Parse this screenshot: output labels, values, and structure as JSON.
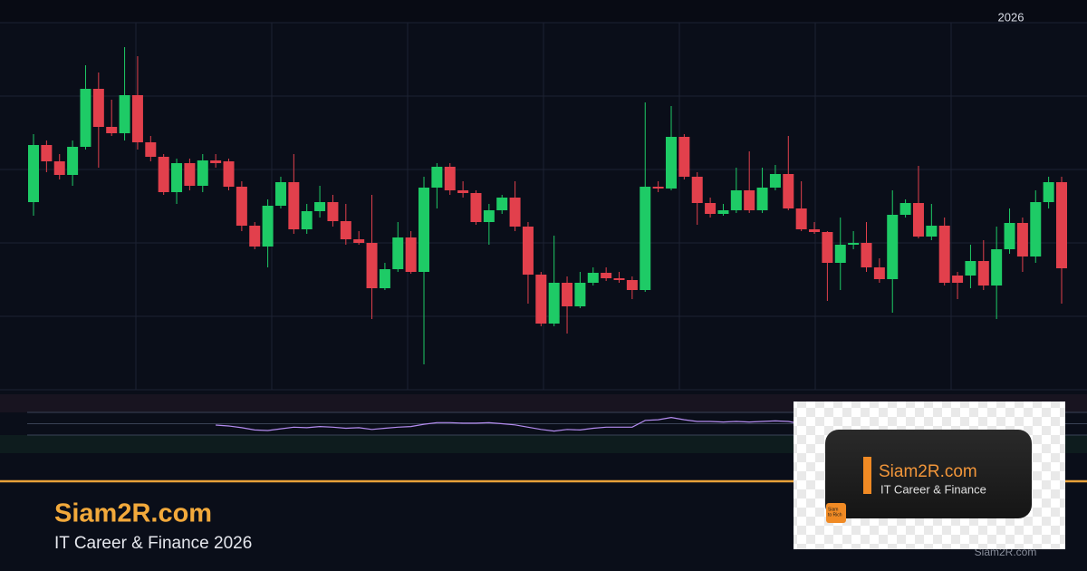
{
  "chart_data": {
    "type": "candlestick",
    "up_color": "#1ecb66",
    "down_color": "#e2404c",
    "ylim": [
      0,
      405
    ],
    "yticks": [
      0,
      81,
      162,
      243,
      324,
      405
    ],
    "grid": true,
    "open": [
      207,
      270,
      252,
      237,
      268,
      332,
      290,
      283,
      325,
      273,
      257,
      218,
      250,
      225,
      253,
      252,
      224,
      181,
      158,
      203,
      229,
      177,
      197,
      207,
      186,
      166,
      162,
      112,
      133,
      168,
      130,
      223,
      246,
      220,
      217,
      185,
      198,
      212,
      180,
      127,
      73,
      118,
      92,
      118,
      129,
      123,
      121,
      110,
      224,
      222,
      279,
      235,
      206,
      194,
      198,
      220,
      198,
      223,
      238,
      200,
      177,
      174,
      140,
      160,
      162,
      135,
      122,
      193,
      206,
      169,
      181,
      126,
      126,
      142,
      115,
      155,
      184,
      147,
      207,
      229
    ],
    "high": [
      282,
      275,
      260,
      275,
      358,
      350,
      320,
      378,
      368,
      280,
      260,
      255,
      255,
      260,
      260,
      255,
      230,
      185,
      210,
      235,
      260,
      205,
      225,
      215,
      205,
      175,
      215,
      140,
      185,
      175,
      235,
      250,
      250,
      230,
      220,
      205,
      215,
      230,
      185,
      130,
      170,
      125,
      130,
      135,
      135,
      130,
      125,
      317,
      230,
      313,
      282,
      240,
      212,
      205,
      245,
      263,
      245,
      248,
      280,
      230,
      185,
      175,
      190,
      175,
      185,
      145,
      220,
      210,
      247,
      205,
      190,
      130,
      160,
      165,
      180,
      200,
      190,
      220,
      235,
      235
    ],
    "low": [
      192,
      240,
      232,
      225,
      265,
      245,
      280,
      275,
      265,
      252,
      215,
      205,
      220,
      218,
      245,
      220,
      175,
      155,
      135,
      200,
      172,
      172,
      190,
      180,
      160,
      160,
      78,
      110,
      130,
      128,
      28,
      200,
      215,
      212,
      182,
      160,
      194,
      175,
      95,
      70,
      70,
      62,
      90,
      115,
      120,
      118,
      100,
      108,
      218,
      220,
      232,
      182,
      190,
      192,
      195,
      195,
      195,
      220,
      198,
      175,
      172,
      98,
      110,
      155,
      130,
      118,
      85,
      190,
      167,
      165,
      115,
      100,
      112,
      110,
      78,
      150,
      130,
      140,
      200,
      95
    ],
    "close": [
      270,
      252,
      237,
      268,
      332,
      290,
      283,
      325,
      273,
      257,
      218,
      250,
      225,
      253,
      250,
      224,
      181,
      158,
      203,
      229,
      177,
      197,
      207,
      186,
      166,
      162,
      112,
      133,
      168,
      130,
      223,
      246,
      220,
      217,
      185,
      198,
      212,
      180,
      127,
      73,
      118,
      92,
      118,
      129,
      123,
      121,
      110,
      224,
      222,
      279,
      235,
      206,
      194,
      198,
      220,
      198,
      223,
      238,
      200,
      177,
      174,
      140,
      160,
      162,
      135,
      122,
      193,
      206,
      169,
      181,
      118,
      118,
      142,
      115,
      155,
      184,
      147,
      207,
      229,
      134
    ],
    "indicator": {
      "color": "#b48cf0",
      "ylim": [
        30,
        70
      ],
      "levels": [
        30,
        50,
        70
      ],
      "values": [
        null,
        null,
        null,
        null,
        null,
        null,
        null,
        null,
        null,
        null,
        null,
        null,
        null,
        null,
        47.6,
        46,
        43,
        39,
        38,
        41,
        44,
        43,
        45,
        44,
        42,
        43,
        40,
        42,
        44,
        45,
        49,
        52,
        52,
        51,
        51,
        52,
        50,
        48,
        44,
        40,
        37,
        40,
        39,
        42,
        44,
        44,
        44,
        56,
        57,
        61,
        57,
        54,
        54,
        53,
        54,
        53,
        54,
        55,
        54,
        50,
        null,
        null,
        null,
        null,
        null,
        null,
        null,
        null,
        null,
        null,
        null,
        null,
        null,
        null,
        null,
        null,
        null,
        null,
        null,
        null
      ]
    }
  },
  "header": {
    "year": "2026"
  },
  "footer": {
    "title": "Siam2R.com",
    "subtitle": "IT Career & Finance 2026",
    "watermark": "Siam2R.com"
  },
  "logo": {
    "title": "Siam2R.com",
    "subtitle": "IT Career & Finance",
    "badge": [
      "Siam",
      "to Rich"
    ]
  }
}
